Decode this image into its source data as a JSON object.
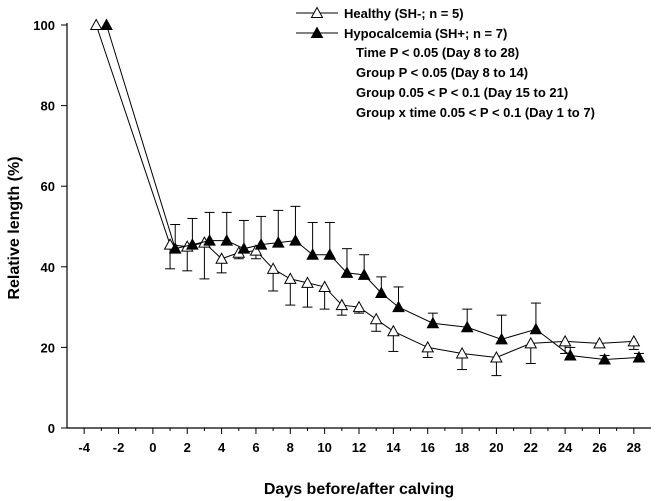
{
  "chart_data": {
    "type": "line",
    "xlabel": "Days before/after calving",
    "ylabel": "Relative length (%)",
    "xlim": [
      -5,
      29
    ],
    "ylim": [
      0,
      100
    ],
    "xticks": [
      -4,
      -2,
      0,
      2,
      4,
      6,
      8,
      10,
      12,
      14,
      16,
      18,
      20,
      22,
      24,
      26,
      28
    ],
    "yticks": [
      0,
      20,
      40,
      60,
      80,
      100
    ],
    "legend_position": "top-right",
    "series": [
      {
        "name": "Healthy (SH-; n = 5)",
        "marker": "open-triangle",
        "x": [
          -3.3,
          1,
          2,
          3,
          4,
          5,
          6,
          7,
          8,
          9,
          10,
          11,
          12,
          13,
          14,
          16,
          18,
          20,
          22,
          24,
          26,
          28
        ],
        "values": [
          100,
          45.5,
          45,
          46,
          42,
          43.5,
          44,
          39.5,
          37,
          36,
          35,
          30.5,
          30,
          27,
          24,
          20,
          18.5,
          17.5,
          21,
          21.5,
          21,
          21.5
        ],
        "errors": [
          0,
          6,
          6,
          9,
          3.5,
          1.5,
          2,
          5.5,
          6.5,
          6,
          5.5,
          2.5,
          1.5,
          3,
          5,
          2.5,
          4,
          4.5,
          5,
          3,
          1,
          2
        ]
      },
      {
        "name": "Hypocalcemia (SH+; n = 7)",
        "marker": "filled-triangle",
        "x": [
          -2.7,
          1.3,
          2.3,
          3.3,
          4.3,
          5.3,
          6.3,
          7.3,
          8.3,
          9.3,
          10.3,
          11.3,
          12.3,
          13.3,
          14.3,
          16.3,
          18.3,
          20.3,
          22.3,
          24.3,
          26.3,
          28.3
        ],
        "values": [
          100,
          44.5,
          45.5,
          46.5,
          46.5,
          44.5,
          45.5,
          46,
          46.5,
          43,
          43,
          38.5,
          38,
          33.5,
          30,
          26,
          25,
          22,
          24.5,
          18,
          17,
          17.5
        ],
        "errors": [
          0,
          6,
          6.5,
          7,
          7,
          7,
          7,
          8,
          8.5,
          8,
          8,
          6,
          5,
          4,
          5,
          2.5,
          4.5,
          6,
          6.5,
          2,
          1,
          1
        ]
      }
    ],
    "annotations": [
      "Time P < 0.05 (Day 8 to 28)",
      "Group P < 0.05 (Day 8 to 14)",
      "Group 0.05 < P < 0.1 (Day 15 to 21)",
      "Group x time 0.05 < P < 0.1 (Day 1 to 7)"
    ]
  }
}
